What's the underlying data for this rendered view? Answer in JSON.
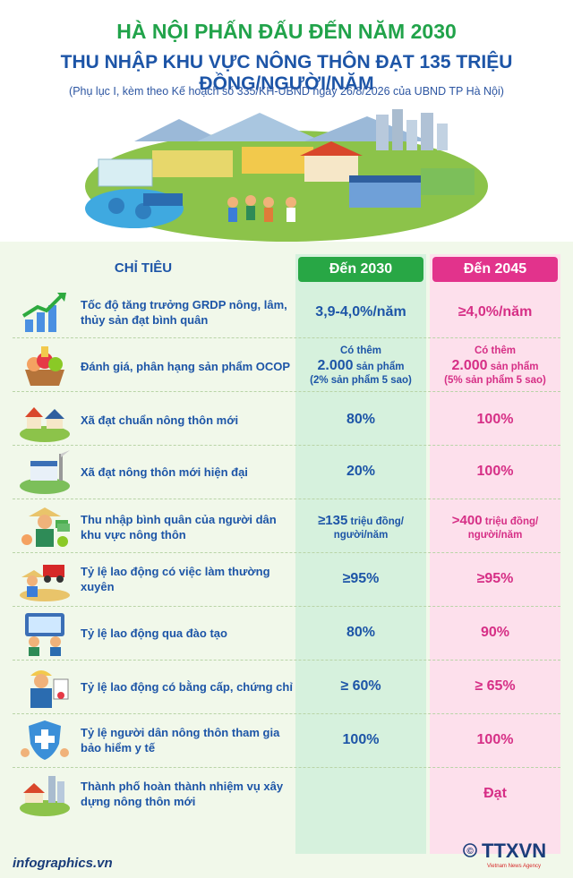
{
  "header": {
    "title_line1": "HÀ NỘI PHẤN ĐẤU ĐẾN NĂM 2030",
    "title_line2": "THU NHẬP KHU VỰC NÔNG THÔN ĐẠT 135 TRIỆU ĐỒNG/NGƯỜI/NĂM",
    "subtitle": "(Phụ lục I, kèm theo Kế hoạch số 335/KH-UBND ngày 26/8/2026 của UBND TP Hà Nội)"
  },
  "table": {
    "header_indicator": "CHỈ TIÊU",
    "header_2030": "Đến 2030",
    "header_2045": "Đến 2045",
    "rows": [
      {
        "label": "Tốc độ tăng trưởng GRDP nông, lâm, thủy sản đạt bình quân",
        "v2030": "3,9-4,0%/năm",
        "v2045": "≥4,0%/năm"
      },
      {
        "label": "Đánh giá, phân hạng sản phẩm OCOP",
        "v2030_pre": "Có thêm",
        "v2030_num": "2.000",
        "v2030_unit": " sản phẩm",
        "v2030_note": "(2% sản phẩm 5 sao)",
        "v2045_pre": "Có thêm",
        "v2045_num": "2.000",
        "v2045_unit": " sản phẩm",
        "v2045_note": "(5% sản phẩm 5 sao)"
      },
      {
        "label": "Xã đạt chuẩn nông thôn mới",
        "v2030": "80%",
        "v2045": "100%"
      },
      {
        "label": "Xã đạt nông thôn mới hiện đại",
        "v2030": "20%",
        "v2045": "100%"
      },
      {
        "label": "Thu nhập bình quân của người dân khu vực nông thôn",
        "v2030_num": "≥135",
        "v2030_unit": " triệu đồng/",
        "v2030_unit2": "người/năm",
        "v2045_num": ">400",
        "v2045_unit": " triệu đồng/",
        "v2045_unit2": "người/năm"
      },
      {
        "label": "Tỷ lệ lao động có việc làm thường xuyên",
        "v2030": "≥95%",
        "v2045": "≥95%"
      },
      {
        "label": "Tỷ lệ lao động qua đào tạo",
        "v2030": "80%",
        "v2045": "90%"
      },
      {
        "label": "Tỷ lệ lao động có bằng cấp, chứng chỉ",
        "v2030": "≥ 60%",
        "v2045": "≥ 65%"
      },
      {
        "label": "Tỷ lệ người dân nông thôn tham gia bảo hiểm y tế",
        "v2030": "100%",
        "v2045": "100%"
      },
      {
        "label": "Thành phố hoàn thành nhiệm vụ xây dựng nông thôn mới",
        "v2030": "",
        "v2045": "Đạt"
      }
    ]
  },
  "footer": {
    "site": "infographics.vn",
    "copyright": "©",
    "logo_text": "TTXVN",
    "logo_sub": "Vietnam News Agency"
  },
  "colors": {
    "green": "#28a745",
    "pink": "#e2338c",
    "blue": "#1d55a7",
    "title_green": "#21a34a"
  },
  "icons": [
    "growth-chart-icon",
    "ocop-produce-icon",
    "village-icon",
    "modern-village-icon",
    "farmer-income-icon",
    "harvest-worker-icon",
    "training-icon",
    "certificate-worker-icon",
    "health-insurance-icon",
    "city-village-icon"
  ]
}
